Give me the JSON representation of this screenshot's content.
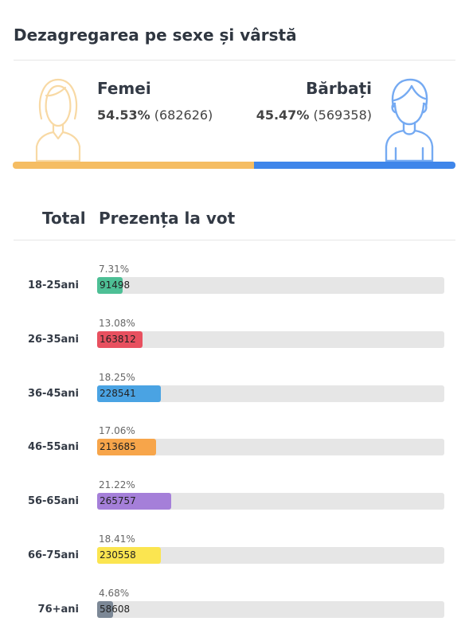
{
  "title": "Dezagregarea pe sexe și vârstă",
  "gender": {
    "female": {
      "label": "Femei",
      "pct": "54.53%",
      "count": "(682626)",
      "share": 0.5453,
      "color": "#f5bd63",
      "icon": "woman-icon"
    },
    "male": {
      "label": "Bărbați",
      "pct": "45.47%",
      "count": "(569358)",
      "share": 0.4547,
      "color": "#3f86ea",
      "icon": "man-icon"
    }
  },
  "table": {
    "total_header": "Total",
    "turnout_header": "Prezența la vot"
  },
  "chart_data": {
    "type": "bar",
    "orientation": "horizontal",
    "categories": [
      "18-25ani",
      "26-35ani",
      "36-45ani",
      "46-55ani",
      "56-65ani",
      "66-75ani",
      "76+ani"
    ],
    "values": [
      91498,
      163812,
      228541,
      213685,
      265757,
      230558,
      58608
    ],
    "percent_labels": [
      "7.31%",
      "13.08%",
      "18.25%",
      "17.06%",
      "21.22%",
      "18.41%",
      "4.68%"
    ],
    "percents": [
      7.31,
      13.08,
      18.25,
      17.06,
      21.22,
      18.41,
      4.68
    ],
    "colors": [
      "#4dbf95",
      "#e8505f",
      "#4aa3e3",
      "#f7a54a",
      "#a57fd9",
      "#fbe550",
      "#7c8896"
    ],
    "xlim": [
      0,
      100
    ],
    "grid": false
  }
}
